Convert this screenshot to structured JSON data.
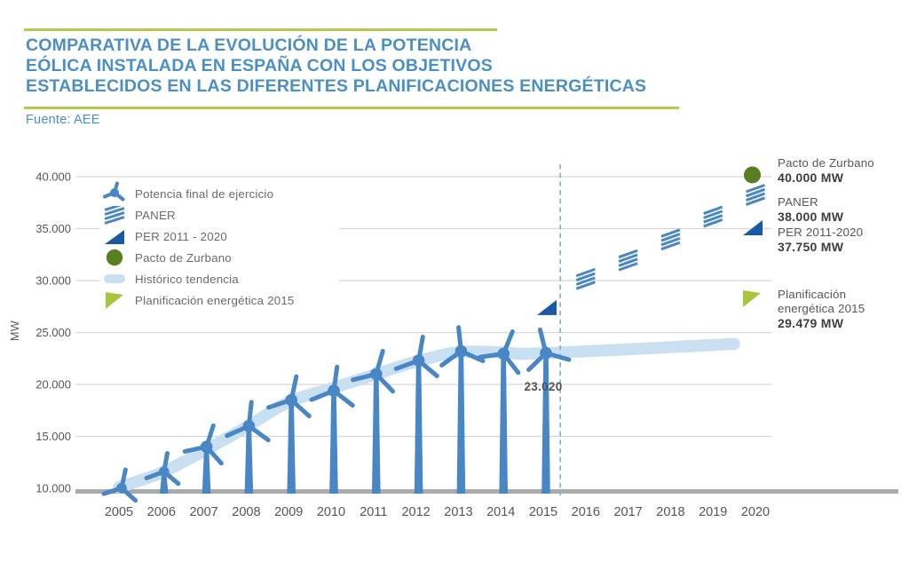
{
  "header": {
    "title_lines": [
      "COMPARATIVA DE LA EVOLUCIÓN DE LA POTENCIA",
      "EÓLICA INSTALADA EN ESPAÑA CON LOS OBJETIVOS",
      "ESTABLECIDOS EN LAS DIFERENTES PLANIFICACIONES ENERGÉTICAS"
    ],
    "source": "Fuente: AEE"
  },
  "colors": {
    "title_blue": "#4a8fc7",
    "rule_green": "#b6ca4f",
    "turbine_blue": "#4886c5",
    "navy": "#175ba6",
    "olive_green": "#597e20",
    "lime_green": "#a8c63c",
    "trend_band_blue": "#c9e0f3",
    "grid_gray": "#d5d6d8",
    "baseline_gray": "#aaabad",
    "divider_blue_gray": "#8fafcc",
    "text_gray": "#58595b"
  },
  "chart_data": {
    "type": "line",
    "title": "Comparativa de la evolución de la potencia eólica instalada en España con los objetivos establecidos en las diferentes planificaciones energéticas",
    "ylabel": "MW",
    "ylim": [
      10000,
      40000
    ],
    "grid": true,
    "yticks": [
      {
        "v": 40000,
        "label": "40.000"
      },
      {
        "v": 35000,
        "label": "35.000"
      },
      {
        "v": 30000,
        "label": "30.000"
      },
      {
        "v": 25000,
        "label": "25.000"
      },
      {
        "v": 20000,
        "label": "20.000"
      },
      {
        "v": 15000,
        "label": "15.000"
      },
      {
        "v": 10000,
        "label": "10.000"
      }
    ],
    "xtick_labels": [
      "2005",
      "2006",
      "2007",
      "2008",
      "2009",
      "2010",
      "2011",
      "2012",
      "2013",
      "2014",
      "2015",
      "2016",
      "2017",
      "2018",
      "2019",
      "2020"
    ],
    "forecast_divider_x": 2015.4,
    "series": [
      {
        "name": "Potencia final de ejercicio",
        "marker": "wind-turbine",
        "x": [
          2005,
          2006,
          2007,
          2008,
          2009,
          2010,
          2011,
          2012,
          2013,
          2014,
          2015
        ],
        "values": [
          10030,
          11600,
          14000,
          16000,
          18500,
          19400,
          21000,
          22300,
          23200,
          22950,
          23020
        ]
      },
      {
        "name": "PANER",
        "marker": "hatched-square",
        "x": [
          2016,
          2017,
          2018,
          2019,
          2020
        ],
        "values": [
          29900,
          31700,
          33700,
          35900,
          38000
        ]
      },
      {
        "name": "PER 2011 - 2020",
        "marker": "navy-triangle",
        "x": [
          2015,
          2020
        ],
        "values": [
          27400,
          37750
        ]
      },
      {
        "name": "Pacto de Zurbano",
        "marker": "green-circle",
        "x": [
          2020
        ],
        "values": [
          40000
        ]
      },
      {
        "name": "Histórico tendencia",
        "marker": "trend-band",
        "x": [
          2005,
          2006,
          2007,
          2008,
          2009,
          2010,
          2011,
          2012,
          2013,
          2014,
          2015,
          2019.5
        ],
        "values": [
          10100,
          11500,
          13600,
          15900,
          18300,
          19600,
          20900,
          22200,
          23100,
          23100,
          23000,
          23900
        ]
      },
      {
        "name": "Planificación energética 2015",
        "marker": "lime-triangle",
        "x": [
          2020
        ],
        "values": [
          29479
        ]
      }
    ],
    "point_label": {
      "x": 2015,
      "text": "23.020"
    },
    "legend": {
      "items": [
        {
          "icon": "wind-turbine",
          "label": "Potencia final de ejercicio"
        },
        {
          "icon": "hatched-square",
          "label": "PANER"
        },
        {
          "icon": "navy-triangle",
          "label": "PER 2011 - 2020"
        },
        {
          "icon": "green-circle",
          "label": "Pacto de Zurbano"
        },
        {
          "icon": "trend-band",
          "label": "Histórico tendencia"
        },
        {
          "icon": "lime-triangle",
          "label": "Planificación energética 2015"
        }
      ]
    },
    "annotations": [
      {
        "name_lines": [
          "Pacto de Zurbano"
        ],
        "value": "40.000 MW"
      },
      {
        "name_lines": [
          "PANER"
        ],
        "value": "38.000 MW"
      },
      {
        "name_lines": [
          "PER 2011-2020"
        ],
        "value": "37.750 MW"
      },
      {
        "name_lines": [
          "Planificación",
          "energética 2015"
        ],
        "value": "29.479 MW"
      }
    ]
  }
}
